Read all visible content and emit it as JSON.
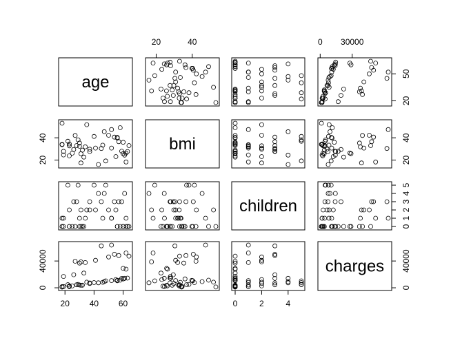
{
  "chart_data": {
    "type": "scatter",
    "subtype": "scatterplot-matrix",
    "title": "",
    "variables": [
      "age",
      "bmi",
      "children",
      "charges"
    ],
    "ranges": {
      "age": [
        18,
        64
      ],
      "bmi": [
        16,
        53.1
      ],
      "children": [
        0,
        5
      ],
      "charges": [
        1100,
        63800
      ]
    },
    "ticks": {
      "age": {
        "values": [
          20,
          40,
          60
        ],
        "labels": [
          "20",
          "40",
          "60"
        ]
      },
      "bmi": {
        "values": [
          20,
          40
        ],
        "labels": [
          "20",
          "40"
        ]
      },
      "children": {
        "values": [
          0,
          2,
          4
        ],
        "labels": [
          "0",
          "2",
          "4"
        ]
      },
      "charges": {
        "values": [
          0,
          30000
        ],
        "labels": [
          "0",
          "30000"
        ]
      }
    },
    "right_ticks": {
      "age": {
        "values": [
          20,
          50
        ],
        "labels": [
          "20",
          "50"
        ]
      },
      "bmi": {
        "values": [
          20,
          40
        ],
        "labels": [
          "20",
          "40"
        ]
      },
      "children": {
        "values": [
          0,
          1,
          2,
          3,
          4,
          5
        ],
        "labels": [
          "0",
          "1",
          "2",
          "3",
          "4",
          "5"
        ]
      },
      "charges": {
        "values": [
          0,
          40000
        ],
        "labels": [
          "0",
          "40000"
        ]
      }
    },
    "left_ticks": {
      "bmi": {
        "values": [
          20,
          40
        ],
        "labels": [
          "20",
          "40"
        ]
      },
      "charges": {
        "values": [
          0,
          40000
        ],
        "labels": [
          "0",
          "40000"
        ]
      }
    },
    "bottom_ticks": {
      "age": {
        "values": [
          20,
          40,
          60
        ],
        "labels": [
          "20",
          "40",
          "60"
        ]
      },
      "children": {
        "values": [
          0,
          2,
          4
        ],
        "labels": [
          "0",
          "2",
          "4"
        ]
      }
    },
    "top_ticks": {
      "bmi": {
        "values": [
          20,
          40
        ],
        "labels": [
          "20",
          "40"
        ]
      },
      "charges": {
        "values": [
          0,
          30000
        ],
        "labels": [
          "0",
          "30000"
        ]
      }
    },
    "points": [
      [
        19,
        27.9,
        0,
        16885
      ],
      [
        18,
        33.8,
        1,
        1726
      ],
      [
        28,
        33,
        3,
        4449
      ],
      [
        33,
        22.7,
        0,
        21984
      ],
      [
        32,
        28.9,
        0,
        3867
      ],
      [
        31,
        25.7,
        0,
        3757
      ],
      [
        46,
        33.4,
        1,
        8241
      ],
      [
        37,
        27.7,
        3,
        7282
      ],
      [
        37,
        29.8,
        2,
        6406
      ],
      [
        60,
        25.8,
        0,
        28923
      ],
      [
        25,
        26.2,
        0,
        2721
      ],
      [
        62,
        26.3,
        0,
        27809
      ],
      [
        23,
        34.4,
        0,
        1827
      ],
      [
        56,
        39.8,
        0,
        11091
      ],
      [
        27,
        42.1,
        0,
        39612
      ],
      [
        19,
        24.6,
        1,
        1837
      ],
      [
        52,
        30.8,
        1,
        10797
      ],
      [
        23,
        23.8,
        0,
        2395
      ],
      [
        56,
        40.3,
        0,
        10602
      ],
      [
        30,
        35.3,
        0,
        36837
      ],
      [
        60,
        36,
        0,
        13229
      ],
      [
        30,
        32.4,
        1,
        4150
      ],
      [
        18,
        34.1,
        0,
        1137
      ],
      [
        34,
        31.9,
        1,
        37702
      ],
      [
        59,
        28,
        3,
        14001
      ],
      [
        63,
        27.7,
        0,
        14451
      ],
      [
        55,
        23.1,
        2,
        12268
      ],
      [
        23,
        32.8,
        2,
        2775
      ],
      [
        31,
        17.4,
        2,
        38711
      ],
      [
        22,
        36.9,
        5,
        4687
      ],
      [
        18,
        53.1,
        0,
        1164
      ],
      [
        58,
        49.1,
        0,
        11381
      ],
      [
        52,
        47.4,
        1,
        63770
      ],
      [
        45,
        30.4,
        3,
        62593
      ],
      [
        54,
        40.6,
        3,
        50000
      ],
      [
        64,
        33,
        0,
        47291
      ],
      [
        47,
        45.5,
        4,
        9200
      ],
      [
        40,
        41.2,
        5,
        7800
      ],
      [
        61,
        24.5,
        4,
        14200
      ],
      [
        48,
        19.2,
        5,
        10300
      ],
      [
        62,
        18.3,
        1,
        52000
      ],
      [
        35,
        51.8,
        2,
        8400
      ],
      [
        43,
        16,
        4,
        7500
      ],
      [
        29,
        38.2,
        5,
        5100
      ],
      [
        50,
        42.3,
        2,
        46000
      ],
      [
        57,
        36.5,
        3,
        48200
      ],
      [
        41,
        30.8,
        2,
        41000
      ],
      [
        26,
        29.5,
        3,
        19500
      ]
    ]
  }
}
